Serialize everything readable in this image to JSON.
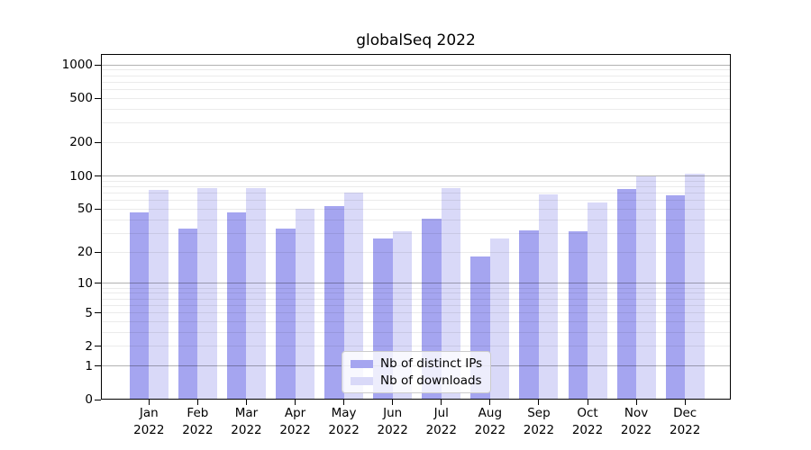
{
  "chart_data": {
    "type": "bar",
    "title": "globalSeq 2022",
    "categories": [
      "Jan",
      "Feb",
      "Mar",
      "Apr",
      "May",
      "Jun",
      "Jul",
      "Aug",
      "Sep",
      "Oct",
      "Nov",
      "Dec"
    ],
    "x_tick_year": "2022",
    "series": [
      {
        "key": "distinct-ips",
        "name": "Nb of distinct IPs",
        "color": "#a5a5f0",
        "values": [
          47,
          33,
          47,
          33,
          53,
          27,
          41,
          18,
          32,
          31,
          76,
          67
        ]
      },
      {
        "key": "downloads",
        "name": "Nb of downloads",
        "color": "#d9d9f8",
        "values": [
          75,
          77,
          77,
          50,
          70,
          31,
          77,
          27,
          68,
          57,
          100,
          105
        ]
      }
    ],
    "y_axis": {
      "scale": "log1p",
      "min": 0,
      "max": 1250,
      "ticks": [
        1000,
        500,
        200,
        100,
        50,
        20,
        10,
        5,
        2,
        1,
        0
      ]
    },
    "grid": {
      "major_at": [
        1,
        10,
        100,
        1000
      ],
      "minor_decades": [
        1,
        10,
        100
      ],
      "major_color": "rgba(0,0,0,0.30)",
      "minor_color": "rgba(0,0,0,0.08)"
    },
    "legend": {
      "position": "lower-center"
    }
  }
}
